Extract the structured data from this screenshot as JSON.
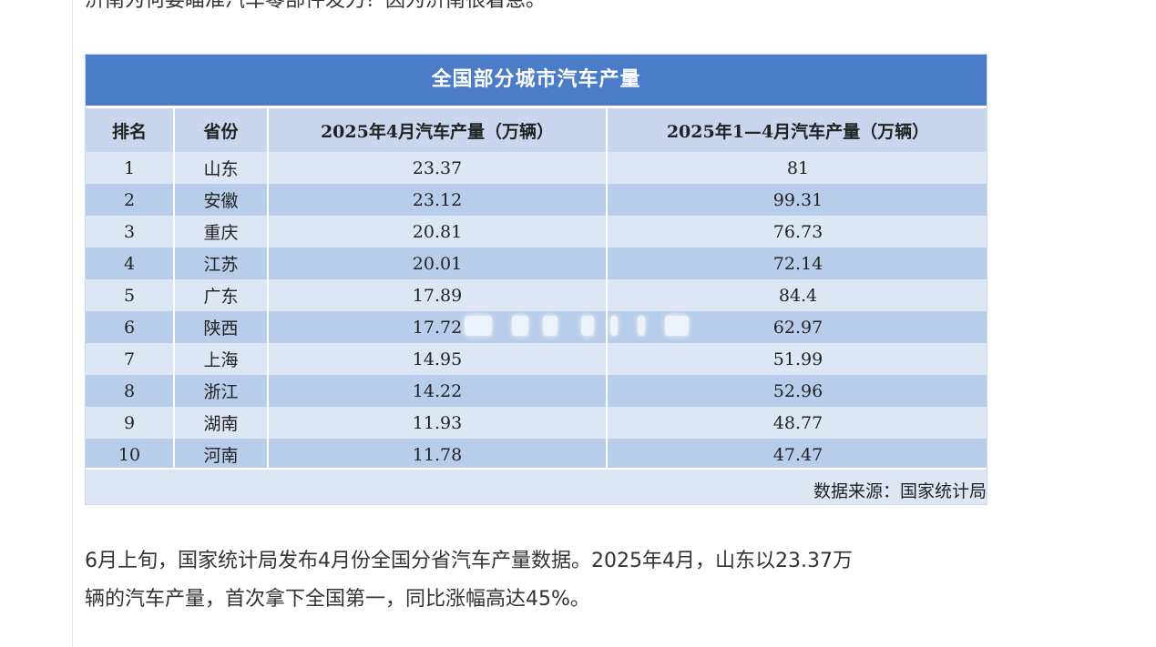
{
  "article": {
    "top_text": "济南为何要瞄准汽车零部件发力？因为济南很着急。",
    "paragraph_line1": "6月上旬，国家统计局发布4月份全国分省汽车产量数据。2025年4月，山东以23.37万",
    "paragraph_line2": "辆的汽车产量，首次拿下全国第一，同比涨幅高达45%。"
  },
  "figure": {
    "title": "全国部分城市汽车产量",
    "source": "数据来源：国家统计局",
    "headers": {
      "rank": "排名",
      "province": "省份",
      "april": "2025年4月汽车产量（万辆）",
      "jan_apr": "2025年1—4月汽车产量（万辆）"
    },
    "rows": [
      {
        "rank": "1",
        "province": "山东",
        "april": "23.37",
        "jan_apr": "81"
      },
      {
        "rank": "2",
        "province": "安徽",
        "april": "23.12",
        "jan_apr": "99.31"
      },
      {
        "rank": "3",
        "province": "重庆",
        "april": "20.81",
        "jan_apr": "76.73"
      },
      {
        "rank": "4",
        "province": "江苏",
        "april": "20.01",
        "jan_apr": "72.14"
      },
      {
        "rank": "5",
        "province": "广东",
        "april": "17.89",
        "jan_apr": "84.4"
      },
      {
        "rank": "6",
        "province": "陕西",
        "april": "17.72",
        "jan_apr": "62.97"
      },
      {
        "rank": "7",
        "province": "上海",
        "april": "14.95",
        "jan_apr": "51.99"
      },
      {
        "rank": "8",
        "province": "浙江",
        "april": "14.22",
        "jan_apr": "52.96"
      },
      {
        "rank": "9",
        "province": "湖南",
        "april": "11.93",
        "jan_apr": "48.77"
      },
      {
        "rank": "10",
        "province": "河南",
        "april": "11.78",
        "jan_apr": "47.47"
      }
    ],
    "colors": {
      "title_bg": "#4a7cc7",
      "header_bg": "#c9d7ee",
      "row_light": "#dde6f4",
      "row_dark": "#b8cde9"
    }
  }
}
